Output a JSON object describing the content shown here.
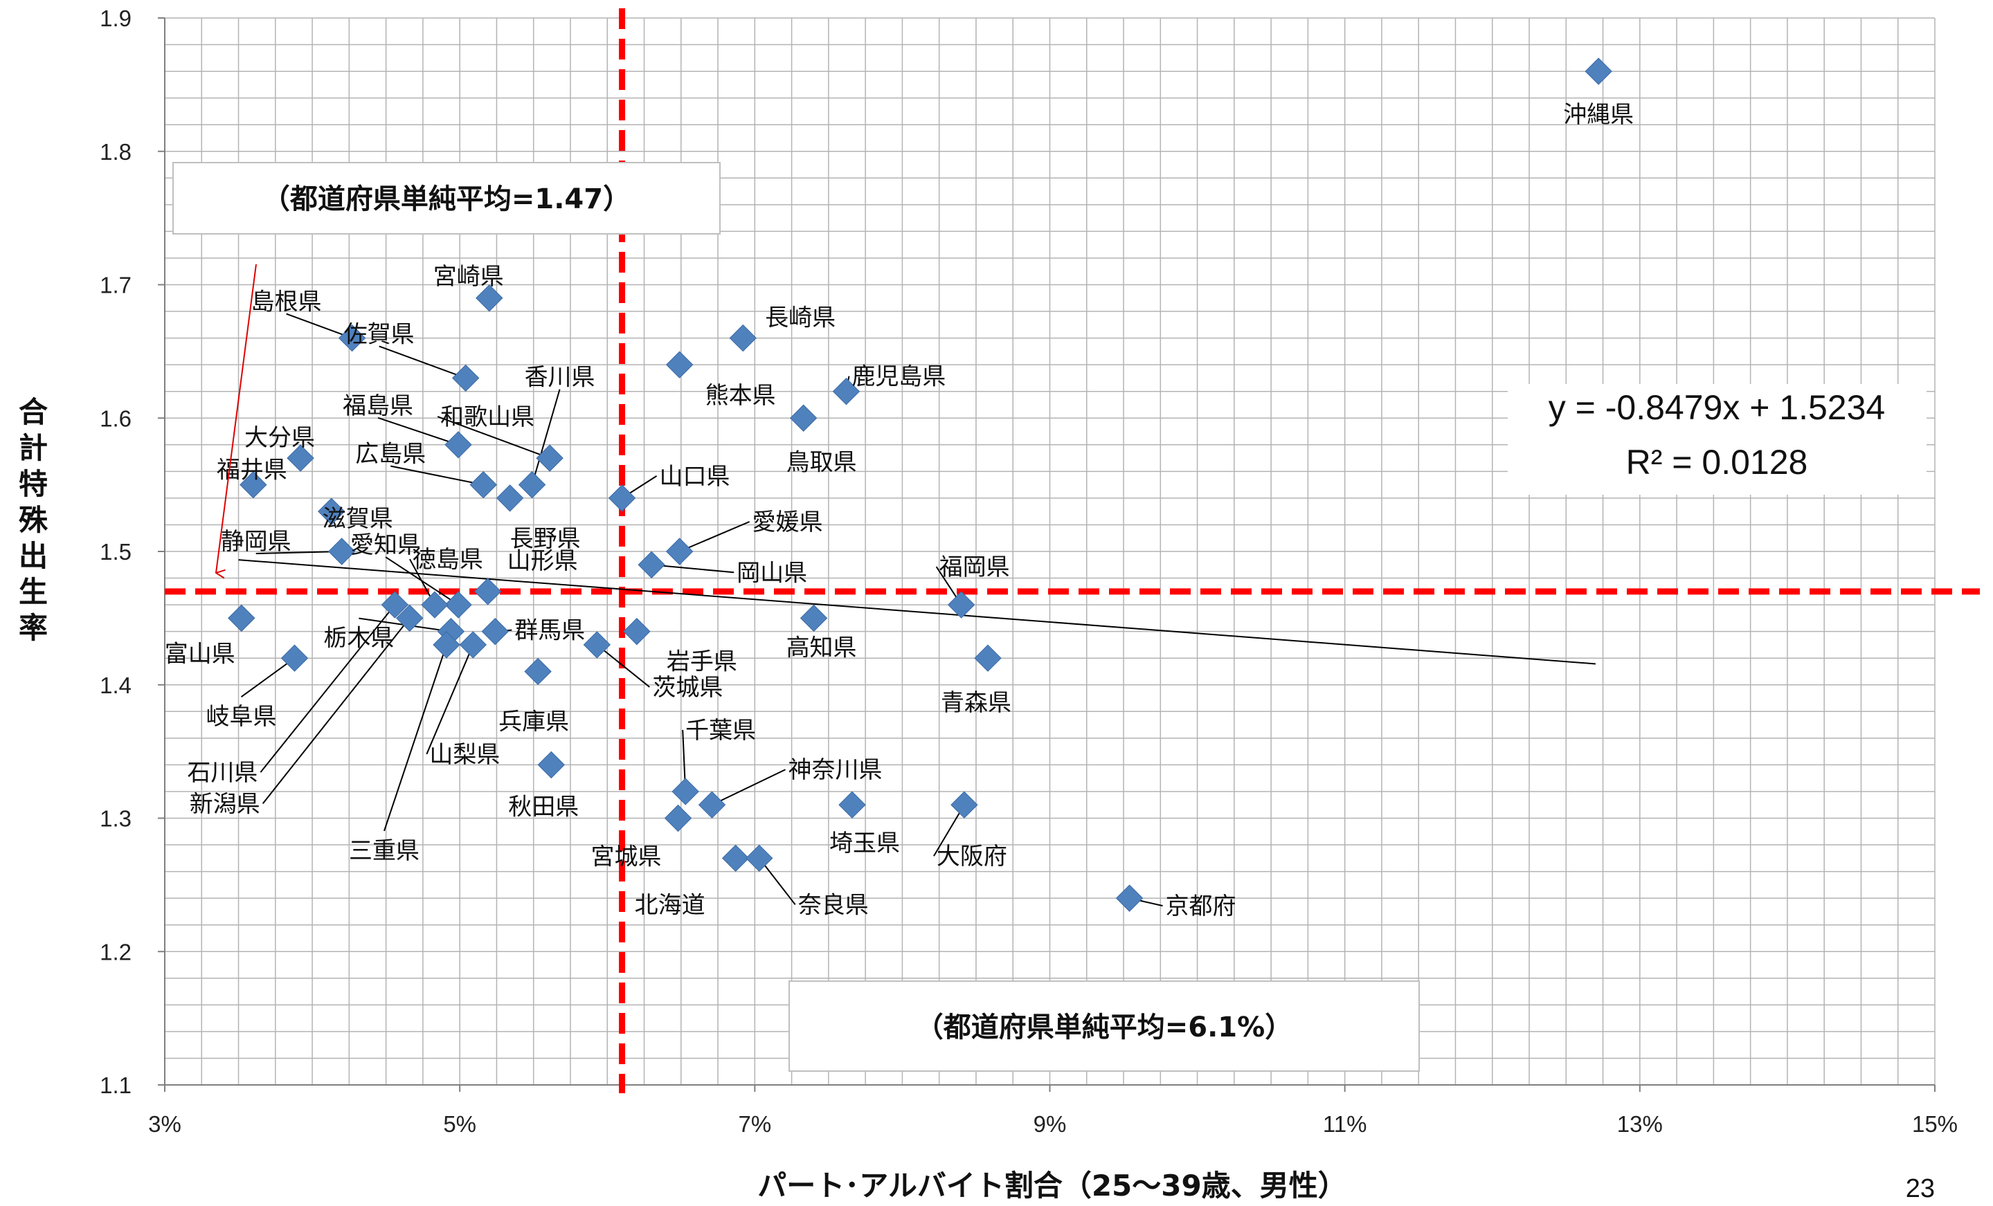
{
  "chart_data": {
    "type": "scatter",
    "xlabel": "パート･アルバイト割合（25～39歳、男性）",
    "ylabel": "合計特殊出生率",
    "xlim": [
      3,
      15
    ],
    "ylim": [
      1.1,
      1.9
    ],
    "x_ticks": [
      "3%",
      "5%",
      "7%",
      "9%",
      "11%",
      "13%",
      "15%"
    ],
    "y_ticks": [
      "1.1",
      "1.2",
      "1.3",
      "1.4",
      "1.5",
      "1.6",
      "1.7",
      "1.8",
      "1.9"
    ],
    "grid": true,
    "marker_color": "#4F81BD",
    "mean_line_color": "#FF0000",
    "points": [
      {
        "label": "沖縄県",
        "x": 12.72,
        "y": 1.86
      },
      {
        "label": "宮崎県",
        "x": 5.2,
        "y": 1.69
      },
      {
        "label": "島根県",
        "x": 4.27,
        "y": 1.66
      },
      {
        "label": "長崎県",
        "x": 6.92,
        "y": 1.66
      },
      {
        "label": "熊本県",
        "x": 6.49,
        "y": 1.64
      },
      {
        "label": "佐賀県",
        "x": 5.04,
        "y": 1.63
      },
      {
        "label": "鹿児島県",
        "x": 7.62,
        "y": 1.62
      },
      {
        "label": "鳥取県",
        "x": 7.33,
        "y": 1.6
      },
      {
        "label": "福島県",
        "x": 4.99,
        "y": 1.58
      },
      {
        "label": "和歌山県",
        "x": 5.61,
        "y": 1.57
      },
      {
        "label": "大分県",
        "x": 3.92,
        "y": 1.57
      },
      {
        "label": "香川県",
        "x": 5.49,
        "y": 1.55
      },
      {
        "label": "広島県",
        "x": 5.16,
        "y": 1.55
      },
      {
        "label": "福井県",
        "x": 3.6,
        "y": 1.55
      },
      {
        "label": "長野県",
        "x": 5.34,
        "y": 1.54
      },
      {
        "label": "山口県",
        "x": 6.1,
        "y": 1.54
      },
      {
        "label": "滋賀県",
        "x": 4.13,
        "y": 1.53
      },
      {
        "label": "静岡県",
        "x": 4.2,
        "y": 1.5
      },
      {
        "label": "愛媛県",
        "x": 6.49,
        "y": 1.5
      },
      {
        "label": "岡山県",
        "x": 6.3,
        "y": 1.49
      },
      {
        "label": "山形県",
        "x": 5.19,
        "y": 1.47
      },
      {
        "label": "愛知県",
        "x": 4.99,
        "y": 1.46
      },
      {
        "label": "徳島県",
        "x": 4.83,
        "y": 1.46
      },
      {
        "label": "福岡県",
        "x": 8.4,
        "y": 1.46
      },
      {
        "label": "石川県",
        "x": 4.56,
        "y": 1.46
      },
      {
        "label": "新潟県",
        "x": 4.66,
        "y": 1.45
      },
      {
        "label": "富山県",
        "x": 3.52,
        "y": 1.45
      },
      {
        "label": "高知県",
        "x": 7.4,
        "y": 1.45
      },
      {
        "label": "岩手県",
        "x": 6.2,
        "y": 1.44
      },
      {
        "label": "栃木県",
        "x": 4.94,
        "y": 1.44
      },
      {
        "label": "群馬県",
        "x": 5.24,
        "y": 1.44
      },
      {
        "label": "三重県",
        "x": 4.91,
        "y": 1.43
      },
      {
        "label": "山梨県",
        "x": 5.09,
        "y": 1.43
      },
      {
        "label": "茨城県",
        "x": 5.93,
        "y": 1.43
      },
      {
        "label": "岐阜県",
        "x": 3.88,
        "y": 1.42
      },
      {
        "label": "青森県",
        "x": 8.58,
        "y": 1.42
      },
      {
        "label": "兵庫県",
        "x": 5.53,
        "y": 1.41
      },
      {
        "label": "秋田県",
        "x": 5.62,
        "y": 1.34
      },
      {
        "label": "千葉県",
        "x": 6.53,
        "y": 1.32
      },
      {
        "label": "神奈川県",
        "x": 6.71,
        "y": 1.31
      },
      {
        "label": "埼玉県",
        "x": 7.66,
        "y": 1.31
      },
      {
        "label": "大阪府",
        "x": 8.42,
        "y": 1.31
      },
      {
        "label": "宮城県",
        "x": 6.48,
        "y": 1.3
      },
      {
        "label": "北海道",
        "x": 6.87,
        "y": 1.27
      },
      {
        "label": "奈良県",
        "x": 7.03,
        "y": 1.27
      },
      {
        "label": "京都府",
        "x": 9.54,
        "y": 1.24
      }
    ],
    "trendline": {
      "slope": -0.8479,
      "intercept": 1.5234,
      "x_range": [
        3.5,
        12.7
      ]
    },
    "mean_x": 6.1,
    "mean_y": 1.47,
    "annotations": {
      "mean_y_box": "（都道府県単純平均=1.47）",
      "mean_x_box": "（都道府県単純平均=6.1%）",
      "equation_line1": "y = -0.8479x + 1.5234",
      "equation_line2": "R² = 0.0128"
    }
  },
  "page_number": "23"
}
